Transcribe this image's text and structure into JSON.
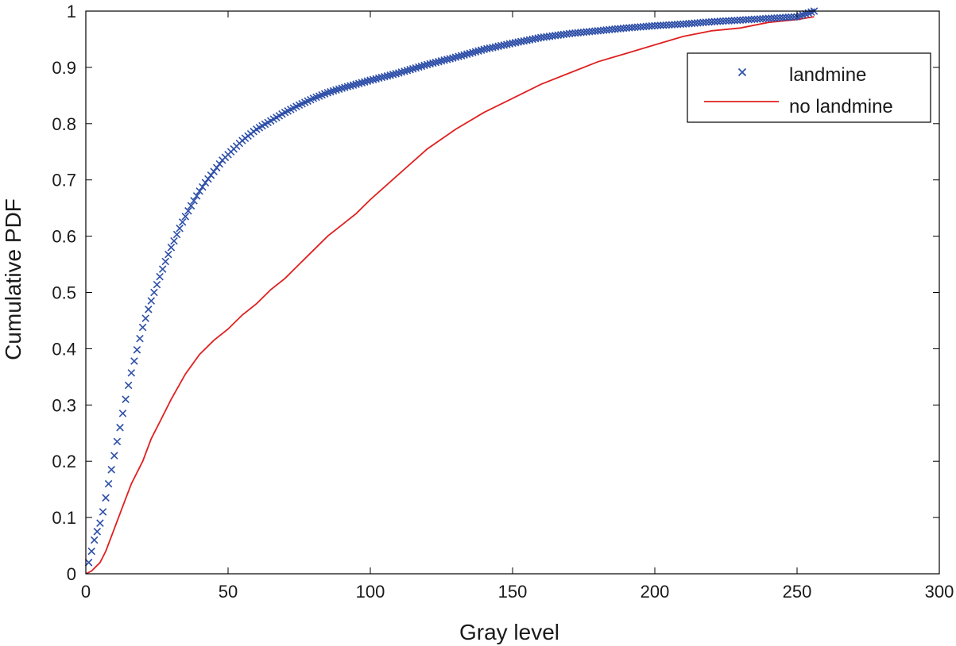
{
  "chart_data": {
    "type": "line",
    "title": "",
    "xlabel": "Gray level",
    "ylabel": "Cumulative PDF",
    "xlim": [
      0,
      300
    ],
    "ylim": [
      0,
      1
    ],
    "xticks": [
      0,
      50,
      100,
      150,
      200,
      250,
      300
    ],
    "yticks": [
      0,
      0.1,
      0.2,
      0.3,
      0.4,
      0.5,
      0.6,
      0.7,
      0.8,
      0.9,
      1
    ],
    "grid": false,
    "legend_position": "top-right",
    "series": [
      {
        "name": "landmine",
        "style": "markers",
        "marker": "x",
        "color": "#2e4fa8",
        "x": [
          1,
          2,
          3,
          4,
          5,
          6,
          7,
          8,
          9,
          10,
          11,
          12,
          13,
          14,
          15,
          16,
          17,
          18,
          19,
          20,
          22,
          24,
          26,
          28,
          30,
          32,
          34,
          36,
          38,
          40,
          42,
          45,
          48,
          50,
          55,
          60,
          65,
          70,
          75,
          80,
          85,
          90,
          95,
          100,
          110,
          120,
          130,
          140,
          150,
          160,
          170,
          180,
          190,
          200,
          210,
          220,
          230,
          240,
          250,
          256
        ],
        "y": [
          0.02,
          0.04,
          0.06,
          0.075,
          0.09,
          0.11,
          0.135,
          0.16,
          0.185,
          0.21,
          0.235,
          0.26,
          0.285,
          0.31,
          0.335,
          0.357,
          0.378,
          0.398,
          0.418,
          0.438,
          0.47,
          0.5,
          0.528,
          0.555,
          0.58,
          0.603,
          0.625,
          0.645,
          0.663,
          0.68,
          0.695,
          0.715,
          0.735,
          0.745,
          0.77,
          0.79,
          0.805,
          0.82,
          0.833,
          0.845,
          0.855,
          0.863,
          0.87,
          0.877,
          0.89,
          0.905,
          0.918,
          0.932,
          0.943,
          0.953,
          0.96,
          0.965,
          0.97,
          0.974,
          0.977,
          0.981,
          0.984,
          0.987,
          0.99,
          1.0
        ]
      },
      {
        "name": "no landmine",
        "style": "line",
        "color": "#e02020",
        "x": [
          0,
          2,
          5,
          7,
          10,
          13,
          16,
          19,
          20,
          23,
          26,
          30,
          35,
          40,
          45,
          50,
          55,
          60,
          65,
          70,
          75,
          80,
          85,
          90,
          95,
          100,
          110,
          120,
          130,
          140,
          150,
          160,
          170,
          180,
          190,
          200,
          210,
          220,
          230,
          240,
          250,
          256
        ],
        "y": [
          0,
          0.005,
          0.02,
          0.04,
          0.08,
          0.12,
          0.16,
          0.19,
          0.2,
          0.24,
          0.27,
          0.31,
          0.355,
          0.39,
          0.415,
          0.435,
          0.46,
          0.48,
          0.505,
          0.525,
          0.55,
          0.575,
          0.6,
          0.62,
          0.64,
          0.665,
          0.71,
          0.755,
          0.79,
          0.82,
          0.845,
          0.87,
          0.89,
          0.91,
          0.925,
          0.94,
          0.955,
          0.965,
          0.97,
          0.98,
          0.985,
          0.99
        ]
      }
    ]
  }
}
